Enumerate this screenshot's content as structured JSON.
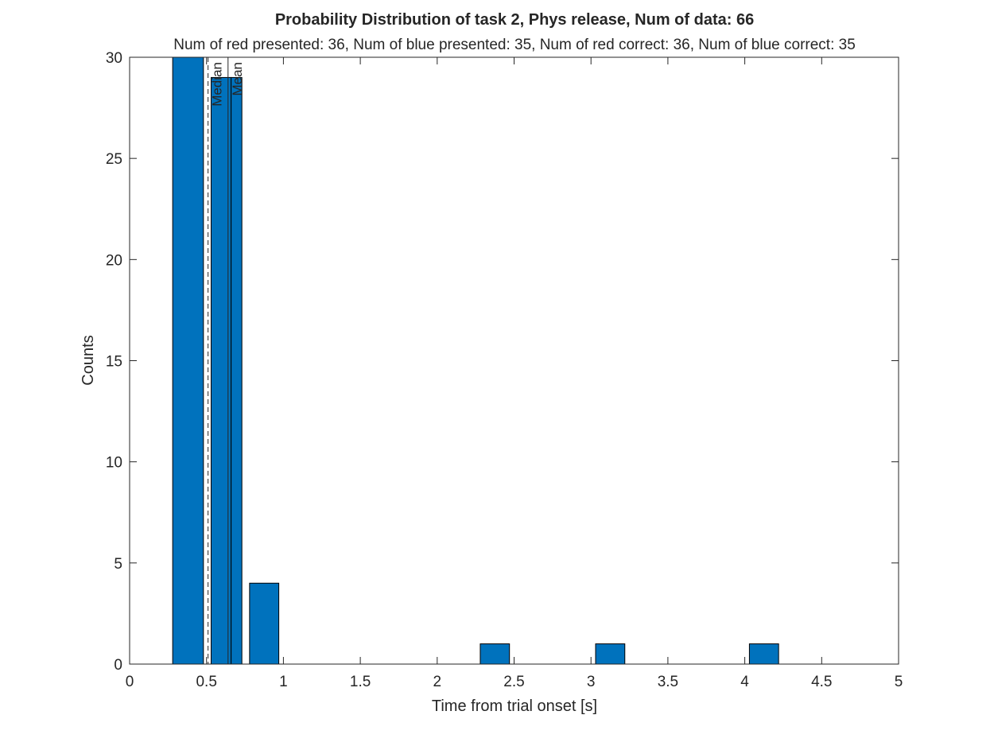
{
  "chart_data": {
    "type": "bar",
    "title": "Probability Distribution of task 2, Phys release, Num of data: 66",
    "subtitle": "Num of red presented: 36, Num of blue presented: 35, Num of red correct: 36, Num of blue correct: 35",
    "xlabel": "Time from trial onset [s]",
    "ylabel": "Counts",
    "xlim": [
      0,
      5
    ],
    "ylim": [
      0,
      30
    ],
    "xticks": [
      0,
      0.5,
      1,
      1.5,
      2,
      2.5,
      3,
      3.5,
      4,
      4.5,
      5
    ],
    "xtick_labels": [
      "0",
      "0.5",
      "1",
      "1.5",
      "2",
      "2.5",
      "3",
      "3.5",
      "4",
      "4.5",
      "5"
    ],
    "yticks": [
      0,
      5,
      10,
      15,
      20,
      25,
      30
    ],
    "ytick_labels": [
      "0",
      "5",
      "10",
      "15",
      "20",
      "25",
      "30"
    ],
    "grid": false,
    "bar_color": "#0072BD",
    "bars": [
      {
        "x0": 0.28,
        "x1": 0.48,
        "value": 30
      },
      {
        "x0": 0.53,
        "x1": 0.66,
        "value": 29
      },
      {
        "x0": 0.66,
        "x1": 0.73,
        "value": 29
      },
      {
        "x0": 0.78,
        "x1": 0.97,
        "value": 4
      },
      {
        "x0": 2.28,
        "x1": 2.47,
        "value": 1
      },
      {
        "x0": 3.03,
        "x1": 3.22,
        "value": 1
      },
      {
        "x0": 4.03,
        "x1": 4.22,
        "value": 1
      }
    ],
    "markers": [
      {
        "label": "Median",
        "x": 0.51,
        "style": "dashed"
      },
      {
        "label": "Mean",
        "x": 0.64,
        "style": "solid"
      }
    ]
  }
}
